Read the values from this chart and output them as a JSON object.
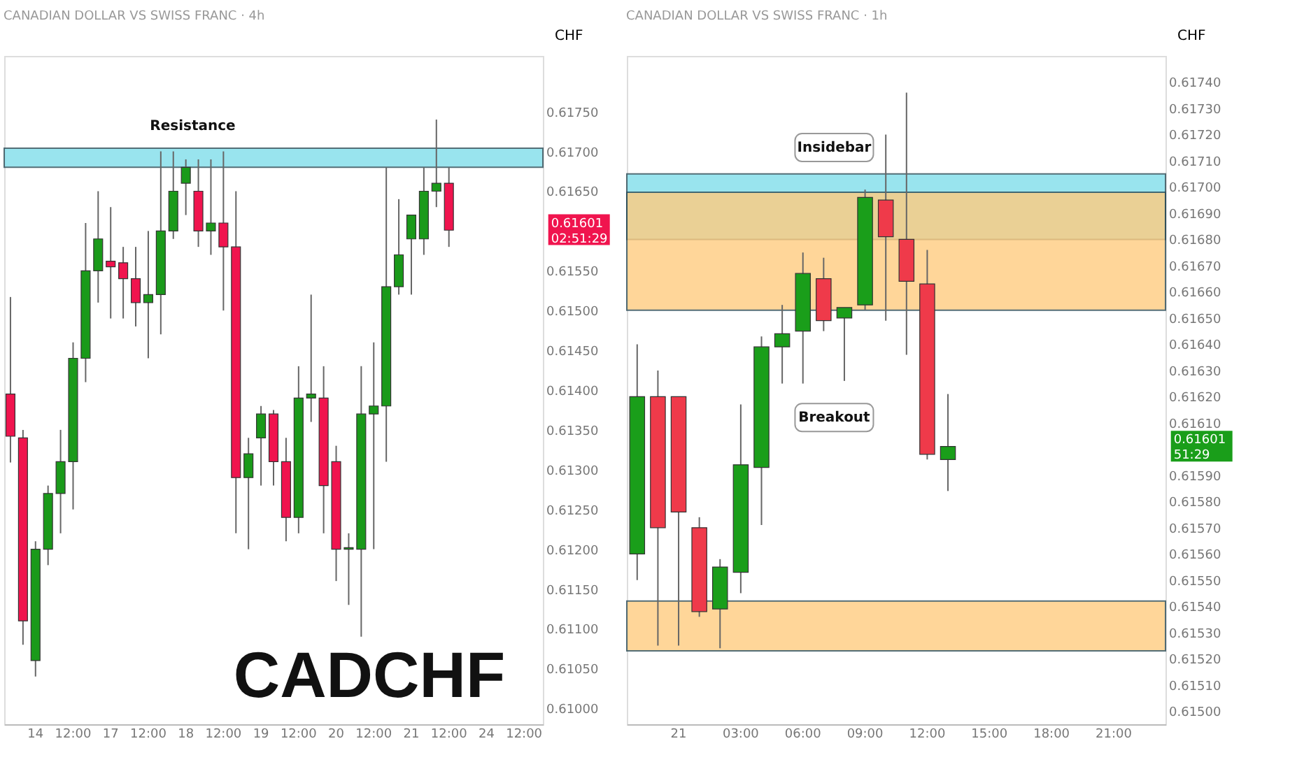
{
  "chart_data": [
    {
      "type": "candlestick",
      "title": "CANADIAN DOLLAR VS SWISS FRANC · 4h",
      "ylabel": "CHF",
      "categories": [
        null,
        null,
        "14",
        null,
        null,
        "12:00",
        null,
        null,
        "17",
        null,
        null,
        "12:00",
        null,
        null,
        "18",
        null,
        null,
        "12:00",
        null,
        null,
        "19",
        null,
        null,
        "12:00",
        null,
        null,
        "20",
        null,
        null,
        "12:00",
        null,
        null,
        "21",
        null,
        null,
        "12:00",
        null,
        null,
        "24",
        null,
        null,
        "12:00",
        null
      ],
      "ohlc": [
        [
          0.61395,
          0.61517,
          0.61309,
          0.61342
        ],
        [
          0.6134,
          0.6135,
          0.6108,
          0.6111
        ],
        [
          0.6106,
          0.6121,
          0.6104,
          0.612
        ],
        [
          0.612,
          0.6128,
          0.6118,
          0.6127
        ],
        [
          0.6127,
          0.6135,
          0.6122,
          0.6131
        ],
        [
          0.6131,
          0.6146,
          0.6125,
          0.6144
        ],
        [
          0.6144,
          0.6161,
          0.6141,
          0.6155
        ],
        [
          0.6155,
          0.6165,
          0.6151,
          0.6159
        ],
        [
          0.61562,
          0.6163,
          0.6149,
          0.61555
        ],
        [
          0.6156,
          0.6158,
          0.6149,
          0.6154
        ],
        [
          0.6154,
          0.6158,
          0.6148,
          0.6151
        ],
        [
          0.6151,
          0.616,
          0.6144,
          0.6152
        ],
        [
          0.6152,
          0.617,
          0.6147,
          0.616
        ],
        [
          0.616,
          0.617,
          0.6159,
          0.6165
        ],
        [
          0.6166,
          0.6169,
          0.6162,
          0.6168
        ],
        [
          0.6165,
          0.6169,
          0.6158,
          0.616
        ],
        [
          0.616,
          0.6169,
          0.6157,
          0.6161
        ],
        [
          0.6161,
          0.617,
          0.615,
          0.6158
        ],
        [
          0.6158,
          0.6165,
          0.6122,
          0.6129
        ],
        [
          0.6129,
          0.6134,
          0.612,
          0.6132
        ],
        [
          0.6134,
          0.6138,
          0.6128,
          0.6137
        ],
        [
          0.6137,
          0.61375,
          0.6128,
          0.6131
        ],
        [
          0.6131,
          0.6134,
          0.6121,
          0.6124
        ],
        [
          0.6124,
          0.6143,
          0.6122,
          0.6139
        ],
        [
          0.6139,
          0.6152,
          0.6136,
          0.61395
        ],
        [
          0.6139,
          0.6143,
          0.6122,
          0.6128
        ],
        [
          0.6131,
          0.6133,
          0.6116,
          0.612
        ],
        [
          0.612,
          0.6122,
          0.6113,
          0.61202
        ],
        [
          0.612,
          0.6143,
          0.6109,
          0.6137
        ],
        [
          0.6137,
          0.6146,
          0.612,
          0.6138
        ],
        [
          0.6138,
          0.6168,
          0.6131,
          0.6153
        ],
        [
          0.6153,
          0.6164,
          0.6152,
          0.6157
        ],
        [
          0.6159,
          0.6162,
          0.6152,
          0.6162
        ],
        [
          0.6159,
          0.6168,
          0.6157,
          0.6165
        ],
        [
          0.6165,
          0.6174,
          0.6163,
          0.6166
        ],
        [
          0.6166,
          0.6168,
          0.6158,
          0.61601
        ],
        null,
        null,
        null,
        null,
        null,
        null,
        null
      ],
      "colors": [
        "#f0144e",
        "#f0144e",
        "#1a9a1a",
        "#1a9a1a",
        "#1a9a1a",
        "#1a9a1a",
        "#1a9a1a",
        "#1a9a1a",
        "#f0144e",
        "#f0144e",
        "#f0144e",
        "#1a9a1a",
        "#1a9a1a",
        "#1a9a1a",
        "#1a9a1a",
        "#f0144e",
        "#1a9a1a",
        "#f0144e",
        "#f0144e",
        "#1a9a1a",
        "#1a9a1a",
        "#f0144e",
        "#f0144e",
        "#1a9a1a",
        "#1a9a1a",
        "#f0144e",
        "#f0144e",
        "#1a9a1a",
        "#1a9a1a",
        "#1a9a1a",
        "#1a9a1a",
        "#1a9a1a",
        "#1a9a1a",
        "#1a9a1a",
        "#1a9a1a",
        "#f0144e",
        null,
        null,
        null,
        null,
        null,
        null,
        null
      ],
      "ylim": [
        0.6098,
        0.6182
      ],
      "yticks": [
        {
          "value": 0.61,
          "label": "0.61000"
        },
        {
          "value": 0.6105,
          "label": "0.61050"
        },
        {
          "value": 0.611,
          "label": "0.61100"
        },
        {
          "value": 0.6115,
          "label": "0.61150"
        },
        {
          "value": 0.612,
          "label": "0.61200"
        },
        {
          "value": 0.6125,
          "label": "0.61250"
        },
        {
          "value": 0.613,
          "label": "0.61300"
        },
        {
          "value": 0.6135,
          "label": "0.61350"
        },
        {
          "value": 0.614,
          "label": "0.61400"
        },
        {
          "value": 0.6145,
          "label": "0.61450"
        },
        {
          "value": 0.615,
          "label": "0.61500"
        },
        {
          "value": 0.6155,
          "label": "0.61550"
        },
        {
          "value": 0.6165,
          "label": "0.61650"
        },
        {
          "value": 0.617,
          "label": "0.61700"
        },
        {
          "value": 0.6175,
          "label": "0.61750"
        }
      ],
      "bands": [
        {
          "axis": "y",
          "from": 0.6168,
          "to": 0.61704,
          "label": "Resistance",
          "color": "#80deea"
        }
      ],
      "annotations": [
        "CADCHF",
        "0.61601\n02:51:29"
      ],
      "grid": false
    },
    {
      "type": "candlestick",
      "title": "CANADIAN DOLLAR VS SWISS FRANC · 1h",
      "ylabel": "CHF",
      "categories": [
        null,
        null,
        "21",
        null,
        null,
        "03:00",
        null,
        null,
        "06:00",
        null,
        null,
        "09:00",
        null,
        null,
        "12:00",
        null,
        null,
        "15:00",
        null,
        null,
        "18:00",
        null,
        null,
        "21:00",
        null,
        null
      ],
      "ohlc": [
        [
          0.6156,
          0.6164,
          0.6155,
          0.6162
        ],
        [
          0.6162,
          0.6163,
          0.61525,
          0.6157
        ],
        [
          0.6162,
          0.6162,
          0.61525,
          0.61576
        ],
        [
          0.6157,
          0.61574,
          0.61536,
          0.61538
        ],
        [
          0.61539,
          0.61558,
          0.61524,
          0.61555
        ],
        [
          0.61553,
          0.61617,
          0.61545,
          0.61594
        ],
        [
          0.61593,
          0.61643,
          0.61571,
          0.61639
        ],
        [
          0.61639,
          0.61655,
          0.61625,
          0.61644
        ],
        [
          0.61645,
          0.61675,
          0.61625,
          0.61667
        ],
        [
          0.61665,
          0.61673,
          0.61645,
          0.61649
        ],
        [
          0.6165,
          0.61654,
          0.61626,
          0.61654
        ],
        [
          0.61655,
          0.61699,
          0.61653,
          0.61696
        ],
        [
          0.61695,
          0.6172,
          0.61649,
          0.61681
        ],
        [
          0.6168,
          0.61736,
          0.61636,
          0.61664
        ],
        [
          0.61663,
          0.61676,
          0.61596,
          0.61598
        ],
        [
          0.61596,
          0.61621,
          0.61584,
          0.61601
        ],
        null,
        null,
        null,
        null,
        null,
        null,
        null,
        null,
        null,
        null
      ],
      "colors": [
        "#1a9e1a",
        "#ef3a4a",
        "#ef3a4a",
        "#ef3a4a",
        "#1a9e1a",
        "#1a9e1a",
        "#1a9e1a",
        "#1a9e1a",
        "#1a9e1a",
        "#ef3a4a",
        "#1a9e1a",
        "#1a9e1a",
        "#ef3a4a",
        "#ef3a4a",
        "#ef3a4a",
        "#1a9e1a",
        null,
        null,
        null,
        null,
        null,
        null,
        null,
        null,
        null,
        null
      ],
      "ylim": [
        0.61495,
        0.6175
      ],
      "yticks": [
        {
          "value": 0.615,
          "label": "0.61500"
        },
        {
          "value": 0.6151,
          "label": "0.61510"
        },
        {
          "value": 0.6152,
          "label": "0.61520"
        },
        {
          "value": 0.6153,
          "label": "0.61530"
        },
        {
          "value": 0.6154,
          "label": "0.61540"
        },
        {
          "value": 0.6155,
          "label": "0.61550"
        },
        {
          "value": 0.6156,
          "label": "0.61560"
        },
        {
          "value": 0.6157,
          "label": "0.61570"
        },
        {
          "value": 0.6158,
          "label": "0.61580"
        },
        {
          "value": 0.6159,
          "label": "0.61590"
        },
        {
          "value": 0.6161,
          "label": "0.61610"
        },
        {
          "value": 0.6162,
          "label": "0.61620"
        },
        {
          "value": 0.6163,
          "label": "0.61630"
        },
        {
          "value": 0.6164,
          "label": "0.61640"
        },
        {
          "value": 0.6165,
          "label": "0.61650"
        },
        {
          "value": 0.6166,
          "label": "0.61660"
        },
        {
          "value": 0.6167,
          "label": "0.61670"
        },
        {
          "value": 0.6168,
          "label": "0.61680"
        },
        {
          "value": 0.6169,
          "label": "0.61690"
        },
        {
          "value": 0.617,
          "label": "0.61700"
        },
        {
          "value": 0.6171,
          "label": "0.61710"
        },
        {
          "value": 0.6172,
          "label": "0.61720"
        },
        {
          "value": 0.6173,
          "label": "0.61730"
        },
        {
          "value": 0.6174,
          "label": "0.61740"
        }
      ],
      "bands": [
        {
          "axis": "y",
          "from": 0.6168,
          "to": 0.61705,
          "color": "#80deea"
        },
        {
          "axis": "y",
          "from": 0.61653,
          "to": 0.61698,
          "color": "#ffcc80"
        },
        {
          "axis": "y",
          "from": 0.61523,
          "to": 0.61542,
          "color": "#ffcc80"
        }
      ],
      "annotations": [
        "Insidebar",
        "Breakout",
        "0.61601\n51:29"
      ],
      "grid": false
    }
  ]
}
